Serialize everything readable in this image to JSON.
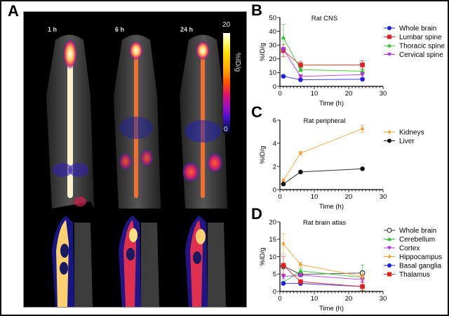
{
  "figure": {
    "panel_labels": [
      "A",
      "B",
      "C",
      "D"
    ],
    "panel_a": {
      "time_points": [
        "1 h",
        "6 h",
        "24 h"
      ],
      "colorbar": {
        "max_label": "20",
        "min_label": "0",
        "unit": "%ID/g"
      }
    }
  },
  "chart_data": [
    {
      "id": "B",
      "type": "line",
      "title": "Rat CNS",
      "xlabel": "Time (h)",
      "ylabel": "%ID/g",
      "xlim": [
        0,
        30
      ],
      "ylim": [
        0,
        50
      ],
      "xticks": [
        0,
        10,
        20,
        30
      ],
      "yticks": [
        0,
        10,
        20,
        30,
        40,
        50
      ],
      "legend_position": "right",
      "x": [
        1,
        6,
        24
      ],
      "series": [
        {
          "name": "Whole brain",
          "color": "#1f1fe0",
          "marker": "circle",
          "values": [
            7.3,
            4.8,
            5.2
          ],
          "errors": [
            0.8,
            0.5,
            0.6
          ]
        },
        {
          "name": "Lumbar spine",
          "color": "#e01f1f",
          "marker": "square",
          "values": [
            26,
            15.5,
            15.6
          ],
          "errors": [
            4.5,
            2.5,
            3.0
          ]
        },
        {
          "name": "Thoracic spine",
          "color": "#2fc02f",
          "marker": "triangle-up",
          "values": [
            35.5,
            12.2,
            11.0
          ],
          "errors": [
            9.5,
            1.5,
            1.5
          ]
        },
        {
          "name": "Cervical spine",
          "color": "#b030e0",
          "marker": "triangle-down",
          "values": [
            27,
            7.3,
            8.5
          ],
          "errors": [
            1.5,
            0.8,
            2.0
          ]
        }
      ]
    },
    {
      "id": "C",
      "type": "line",
      "title": "Rat peripheral",
      "xlabel": "Time (h)",
      "ylabel": "%ID/g",
      "xlim": [
        0,
        30
      ],
      "ylim": [
        0,
        6
      ],
      "xticks": [
        0,
        10,
        20,
        30
      ],
      "yticks": [
        0,
        2,
        4,
        6
      ],
      "legend_position": "right",
      "x": [
        1,
        6,
        24
      ],
      "series": [
        {
          "name": "Kidneys",
          "color": "#f5a030",
          "marker": "diamond",
          "values": [
            0.8,
            3.15,
            5.25
          ],
          "errors": [
            0.1,
            0.15,
            0.3
          ]
        },
        {
          "name": "Liver",
          "color": "#111111",
          "marker": "circle",
          "values": [
            0.48,
            1.52,
            1.8
          ],
          "errors": [
            0.05,
            0.05,
            0.05
          ]
        }
      ]
    },
    {
      "id": "D",
      "type": "line",
      "title": "Rat brain atlas",
      "xlabel": "Time (h)",
      "ylabel": "%ID/g",
      "xlim": [
        0,
        30
      ],
      "ylim": [
        0,
        20
      ],
      "xticks": [
        0,
        10,
        20,
        30
      ],
      "yticks": [
        0,
        5,
        10,
        15,
        20
      ],
      "legend_position": "right",
      "x": [
        1,
        6,
        24
      ],
      "series": [
        {
          "name": "Whole brain",
          "color": "#333333",
          "marker": "open-circle",
          "values": [
            7.3,
            4.9,
            5.3
          ],
          "errors": [
            0.8,
            0.5,
            0.6
          ]
        },
        {
          "name": "Cerebellum",
          "color": "#2fc02f",
          "marker": "triangle-up",
          "values": [
            2.6,
            5.9,
            4.0
          ],
          "errors": [
            0.3,
            0.6,
            3.6
          ]
        },
        {
          "name": "Cortex",
          "color": "#b030e0",
          "marker": "triangle-down",
          "values": [
            4.3,
            4.7,
            3.4
          ],
          "errors": [
            0.7,
            0.5,
            0.6
          ]
        },
        {
          "name": "Hippocampus",
          "color": "#f5a030",
          "marker": "diamond",
          "values": [
            13.7,
            7.7,
            4.3
          ],
          "errors": [
            2.9,
            0.7,
            0.8
          ]
        },
        {
          "name": "Basal ganglia",
          "color": "#1f1fe0",
          "marker": "circle",
          "values": [
            2.3,
            2.3,
            1.4
          ],
          "errors": [
            0.2,
            0.2,
            0.3
          ]
        },
        {
          "name": "Thalamus",
          "color": "#e01f1f",
          "marker": "square",
          "values": [
            7.5,
            2.8,
            1.4
          ],
          "errors": [
            2.6,
            0.4,
            1.2
          ]
        }
      ]
    }
  ]
}
